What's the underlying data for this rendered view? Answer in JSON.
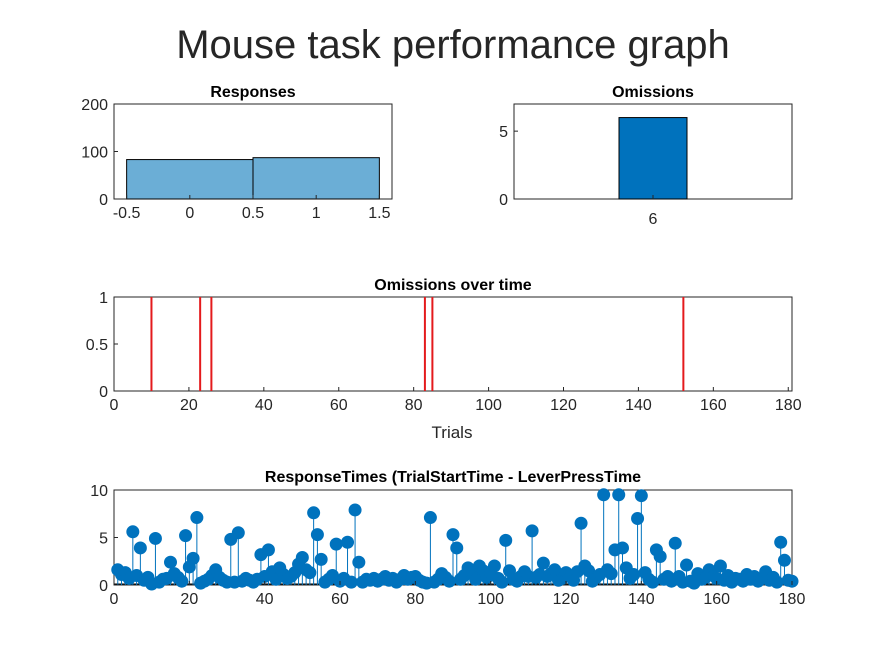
{
  "figure": {
    "title": "Mouse task performance graph"
  },
  "chart_data": [
    {
      "type": "bar",
      "title": "Responses",
      "subtype": "histogram",
      "bins": [
        {
          "range": [
            -0.5,
            0.5
          ],
          "value": 83
        },
        {
          "range": [
            0.5,
            1.5
          ],
          "value": 87
        }
      ],
      "xlim": [
        -0.6,
        1.6
      ],
      "ylim": [
        0,
        200
      ],
      "xticks": [
        "-0.5",
        "0",
        "0.5",
        "1",
        "1.5"
      ],
      "yticks": [
        "0",
        "100",
        "200"
      ],
      "color": "#6baed6"
    },
    {
      "type": "bar",
      "title": "Omissions",
      "categories": [
        "6"
      ],
      "values": [
        6
      ],
      "ylim": [
        0,
        7
      ],
      "yticks": [
        "0",
        "5"
      ],
      "color": "#0072bd"
    },
    {
      "type": "line",
      "title": "Omissions over time",
      "xlabel": "Trials",
      "omission_trials": [
        10,
        23,
        26,
        83,
        85,
        152
      ],
      "xlim": [
        0,
        181
      ],
      "ylim": [
        0,
        1
      ],
      "xticks": [
        "0",
        "20",
        "40",
        "60",
        "80",
        "100",
        "120",
        "140",
        "160",
        "180"
      ],
      "yticks": [
        "0",
        "0.5",
        "1"
      ],
      "color": "#e41a1c"
    },
    {
      "type": "scatter",
      "title": "ResponseTimes (TrialStartTime - LeverPressTime",
      "style": "stem",
      "xlim": [
        0,
        180
      ],
      "ylim": [
        0,
        10
      ],
      "xticks": [
        "0",
        "20",
        "40",
        "60",
        "80",
        "100",
        "120",
        "140",
        "160",
        "180"
      ],
      "yticks": [
        "0",
        "5",
        "10"
      ],
      "color": "#0072bd",
      "points": [
        [
          1,
          1.6
        ],
        [
          2,
          1.1
        ],
        [
          3,
          1.3
        ],
        [
          4,
          0.7
        ],
        [
          5,
          5.6
        ],
        [
          6,
          1.0
        ],
        [
          7,
          3.9
        ],
        [
          8,
          0.5
        ],
        [
          9,
          0.8
        ],
        [
          10,
          0.1
        ],
        [
          11,
          4.9
        ],
        [
          12,
          0.3
        ],
        [
          13,
          0.6
        ],
        [
          14,
          0.7
        ],
        [
          15,
          2.4
        ],
        [
          16,
          1.2
        ],
        [
          17,
          0.8
        ],
        [
          18,
          0.4
        ],
        [
          19,
          5.2
        ],
        [
          20,
          1.9
        ],
        [
          21,
          2.8
        ],
        [
          22,
          7.1
        ],
        [
          23,
          0.2
        ],
        [
          24,
          0.4
        ],
        [
          25,
          0.6
        ],
        [
          26,
          1.0
        ],
        [
          27,
          1.6
        ],
        [
          28,
          0.8
        ],
        [
          29,
          0.5
        ],
        [
          30,
          0.3
        ],
        [
          31,
          4.8
        ],
        [
          32,
          0.3
        ],
        [
          33,
          5.5
        ],
        [
          34,
          0.4
        ],
        [
          35,
          0.7
        ],
        [
          36,
          0.5
        ],
        [
          37,
          0.3
        ],
        [
          38,
          0.6
        ],
        [
          39,
          3.2
        ],
        [
          40,
          0.9
        ],
        [
          41,
          3.7
        ],
        [
          42,
          1.4
        ],
        [
          43,
          0.6
        ],
        [
          44,
          1.8
        ],
        [
          45,
          1.1
        ],
        [
          46,
          0.7
        ],
        [
          47,
          0.9
        ],
        [
          48,
          1.3
        ],
        [
          49,
          2.2
        ],
        [
          50,
          2.9
        ],
        [
          51,
          1.6
        ],
        [
          52,
          1.3
        ],
        [
          53,
          7.6
        ],
        [
          54,
          5.3
        ],
        [
          55,
          2.7
        ],
        [
          56,
          0.3
        ],
        [
          57,
          0.6
        ],
        [
          58,
          1.0
        ],
        [
          59,
          4.3
        ],
        [
          60,
          0.4
        ],
        [
          61,
          0.7
        ],
        [
          62,
          4.5
        ],
        [
          63,
          0.3
        ],
        [
          64,
          7.9
        ],
        [
          65,
          2.4
        ],
        [
          66,
          0.3
        ],
        [
          67,
          0.6
        ],
        [
          68,
          0.5
        ],
        [
          69,
          0.7
        ],
        [
          70,
          0.4
        ],
        [
          71,
          0.6
        ],
        [
          72,
          0.9
        ],
        [
          73,
          0.5
        ],
        [
          74,
          0.7
        ],
        [
          75,
          0.3
        ],
        [
          76,
          0.6
        ],
        [
          77,
          1.0
        ],
        [
          78,
          0.6
        ],
        [
          79,
          0.8
        ],
        [
          80,
          0.9
        ],
        [
          81,
          0.5
        ],
        [
          82,
          0.3
        ],
        [
          83,
          0.2
        ],
        [
          84,
          7.1
        ],
        [
          85,
          0.3
        ],
        [
          86,
          0.6
        ],
        [
          87,
          1.2
        ],
        [
          88,
          0.8
        ],
        [
          89,
          0.4
        ],
        [
          90,
          5.3
        ],
        [
          91,
          3.9
        ],
        [
          92,
          0.6
        ],
        [
          93,
          1.0
        ],
        [
          94,
          1.8
        ],
        [
          95,
          1.3
        ],
        [
          96,
          0.6
        ],
        [
          97,
          2.0
        ],
        [
          98,
          1.5
        ],
        [
          99,
          0.8
        ],
        [
          100,
          1.2
        ],
        [
          101,
          2.0
        ],
        [
          102,
          0.7
        ],
        [
          103,
          0.3
        ],
        [
          104,
          4.7
        ],
        [
          105,
          1.5
        ],
        [
          106,
          0.6
        ],
        [
          107,
          0.4
        ],
        [
          108,
          0.9
        ],
        [
          109,
          1.4
        ],
        [
          110,
          0.9
        ],
        [
          111,
          5.7
        ],
        [
          112,
          0.8
        ],
        [
          113,
          1.1
        ],
        [
          114,
          2.3
        ],
        [
          115,
          0.9
        ],
        [
          116,
          1.2
        ],
        [
          117,
          1.6
        ],
        [
          118,
          0.5
        ],
        [
          119,
          0.7
        ],
        [
          120,
          1.3
        ],
        [
          121,
          0.9
        ],
        [
          122,
          0.5
        ],
        [
          123,
          1.4
        ],
        [
          124,
          6.5
        ],
        [
          125,
          2.0
        ],
        [
          126,
          1.5
        ],
        [
          127,
          0.4
        ],
        [
          128,
          0.8
        ],
        [
          129,
          1.1
        ],
        [
          130,
          9.5
        ],
        [
          131,
          1.6
        ],
        [
          132,
          1.2
        ],
        [
          133,
          3.7
        ],
        [
          134,
          9.5
        ],
        [
          135,
          3.9
        ],
        [
          136,
          1.8
        ],
        [
          137,
          0.7
        ],
        [
          138,
          1.1
        ],
        [
          139,
          7.0
        ],
        [
          140,
          9.4
        ],
        [
          141,
          1.3
        ],
        [
          142,
          0.6
        ],
        [
          143,
          0.3
        ],
        [
          144,
          3.7
        ],
        [
          145,
          3.0
        ],
        [
          146,
          0.6
        ],
        [
          147,
          0.9
        ],
        [
          148,
          0.4
        ],
        [
          149,
          4.4
        ],
        [
          150,
          0.9
        ],
        [
          151,
          0.3
        ],
        [
          152,
          2.1
        ],
        [
          153,
          0.4
        ],
        [
          154,
          0.2
        ],
        [
          155,
          1.2
        ],
        [
          156,
          0.6
        ],
        [
          157,
          0.8
        ],
        [
          158,
          1.6
        ],
        [
          159,
          1.0
        ],
        [
          160,
          0.7
        ],
        [
          161,
          2.0
        ],
        [
          162,
          0.5
        ],
        [
          163,
          1.0
        ],
        [
          164,
          0.3
        ],
        [
          165,
          0.7
        ],
        [
          166,
          0.6
        ],
        [
          167,
          0.4
        ],
        [
          168,
          1.1
        ],
        [
          169,
          0.6
        ],
        [
          170,
          0.9
        ],
        [
          171,
          0.4
        ],
        [
          172,
          0.7
        ],
        [
          173,
          1.4
        ],
        [
          174,
          0.5
        ],
        [
          175,
          0.8
        ],
        [
          176,
          0.3
        ],
        [
          177,
          4.5
        ],
        [
          178,
          2.6
        ],
        [
          179,
          0.5
        ],
        [
          180,
          0.4
        ]
      ]
    }
  ]
}
